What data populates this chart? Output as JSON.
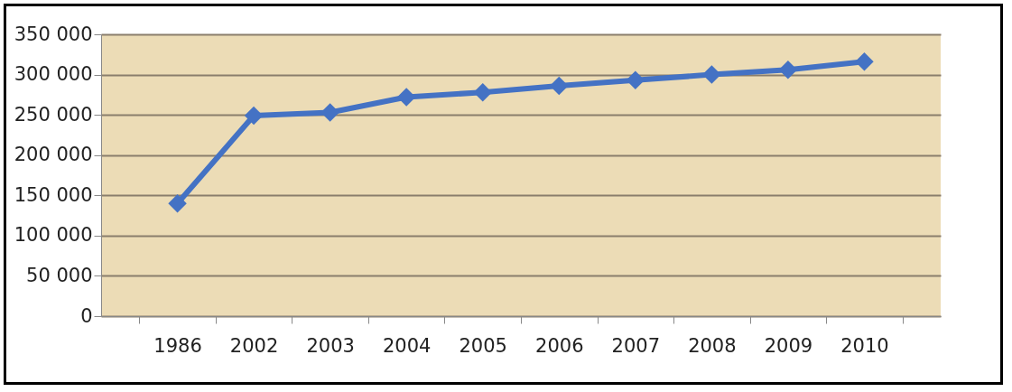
{
  "chart_data": {
    "type": "line",
    "categories": [
      "1986",
      "2002",
      "2003",
      "2004",
      "2005",
      "2006",
      "2007",
      "2008",
      "2009",
      "2010"
    ],
    "series": [
      {
        "color": "#4472c4",
        "values": [
          140000,
          249000,
          253000,
          272000,
          278000,
          286000,
          293000,
          300000,
          306000,
          316000
        ]
      }
    ],
    "ylim": [
      0,
      350000
    ],
    "yticks": [
      {
        "value": 0,
        "label": "0"
      },
      {
        "value": 50000,
        "label": "50 000"
      },
      {
        "value": 100000,
        "label": "100 000"
      },
      {
        "value": 150000,
        "label": "150 000"
      },
      {
        "value": 200000,
        "label": "200 000"
      },
      {
        "value": 250000,
        "label": "250 000"
      },
      {
        "value": 300000,
        "label": "300 000"
      },
      {
        "value": 350000,
        "label": "350 000"
      }
    ],
    "grid": "y",
    "marker": "diamond",
    "line_style": "solid"
  }
}
